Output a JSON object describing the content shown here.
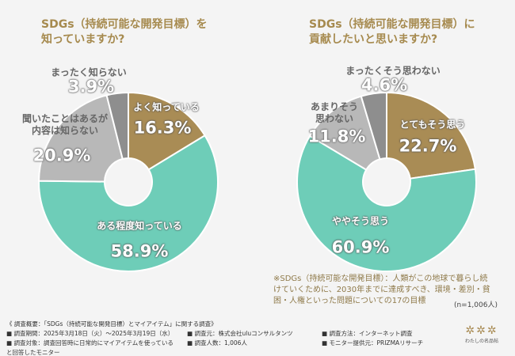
{
  "chart_data": [
    {
      "type": "pie",
      "title": [
        "SDGs（持続可能な開発目標）を",
        "知っていますか?"
      ],
      "categories": [
        "よく知っている",
        "ある程度知っている",
        "聞いたことはあるが\n内容は知らない",
        "まったく知らない"
      ],
      "values": [
        16.3,
        58.9,
        20.9,
        3.9
      ],
      "value_labels": [
        "16.3%",
        "58.9%",
        "20.9%",
        "3.9%"
      ],
      "colors": [
        "#a98c55",
        "#6ecdb8",
        "#b8b8b8",
        "#8e8e8e"
      ]
    },
    {
      "type": "pie",
      "title": [
        "SDGs（持続可能な開発目標）に",
        "貢献したいと思いますか?"
      ],
      "categories": [
        "とてもそう思う",
        "ややそう思う",
        "あまりそう\n思わない",
        "まったくそう思わない"
      ],
      "values": [
        22.7,
        60.9,
        11.8,
        4.6
      ],
      "value_labels": [
        "22.7%",
        "60.9%",
        "11.8%",
        "4.6%"
      ],
      "colors": [
        "#a98c55",
        "#6ecdb8",
        "#b8b8b8",
        "#8e8e8e"
      ]
    }
  ],
  "note": "※SDGs（持続可能な開発目標）：人類がこの地球で暮らし続けていくために、2030年までに達成すべき、環境・差別・貧困・人権といった問題についての17の目標",
  "sample_size": "(n=1,006人)",
  "survey": {
    "title": "《 調査概要：「SDGs（持続可能な開発目標）とマイアイテム」に関する調査》",
    "items": [
      "調査期間：2025年3月18日（火）～2025年3月19日（水）",
      "調査元：株式会社uluコンサルタンツ",
      "調査方法：インターネット調査",
      "調査対象：調査回答時に日常的にマイアイテムを使っていると回答したモニター",
      "調査人数：1,006人",
      "モニター提供元：PRIZMAリサーチ"
    ]
  },
  "logo": "わたしの名品帖"
}
